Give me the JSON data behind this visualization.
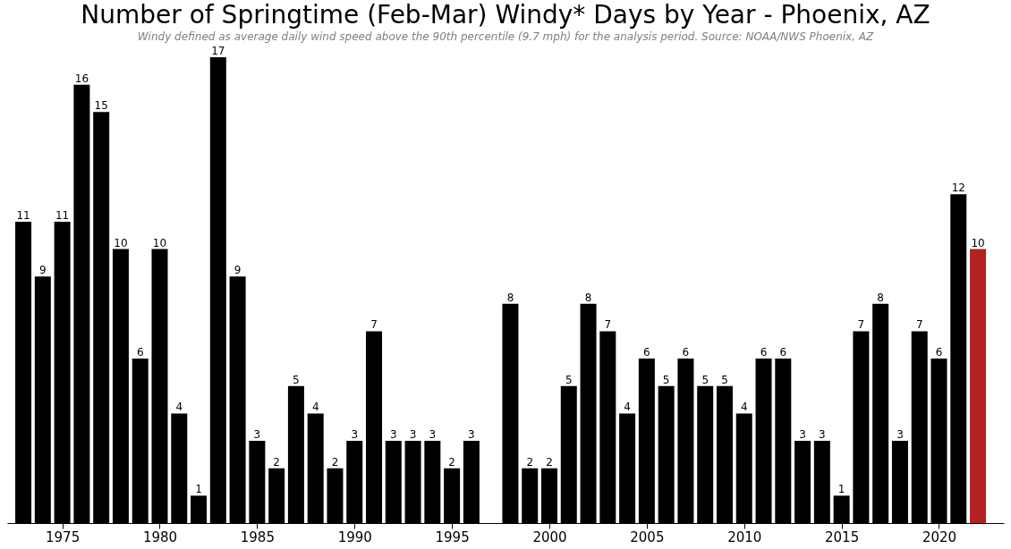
{
  "chart_data": {
    "type": "bar",
    "title": "Number of Springtime (Feb-Mar) Windy* Days by Year - Phoenix, AZ",
    "subtitle": "Windy defined as average daily wind speed above the 90th percentile (9.7 mph) for the analysis period. Source: NOAA/NWS Phoenix, AZ",
    "x": [
      1973,
      1974,
      1975,
      1976,
      1977,
      1978,
      1979,
      1980,
      1981,
      1982,
      1983,
      1984,
      1985,
      1986,
      1987,
      1988,
      1989,
      1990,
      1991,
      1992,
      1993,
      1994,
      1995,
      1996,
      1997,
      1998,
      1999,
      2000,
      2001,
      2002,
      2003,
      2004,
      2005,
      2006,
      2007,
      2008,
      2009,
      2010,
      2011,
      2012,
      2013,
      2014,
      2015,
      2016,
      2017,
      2018,
      2019,
      2020,
      2021,
      2022
    ],
    "values": [
      11,
      9,
      11,
      16,
      15,
      10,
      6,
      10,
      4,
      1,
      17,
      9,
      3,
      2,
      5,
      4,
      2,
      3,
      7,
      3,
      3,
      3,
      2,
      3,
      null,
      8,
      2,
      2,
      5,
      8,
      7,
      4,
      6,
      5,
      6,
      5,
      5,
      4,
      6,
      6,
      3,
      3,
      1,
      7,
      8,
      3,
      7,
      6,
      12,
      10
    ],
    "colors": [
      "#000000",
      "#000000",
      "#000000",
      "#000000",
      "#000000",
      "#000000",
      "#000000",
      "#000000",
      "#000000",
      "#000000",
      "#000000",
      "#000000",
      "#000000",
      "#000000",
      "#000000",
      "#000000",
      "#000000",
      "#000000",
      "#000000",
      "#000000",
      "#000000",
      "#000000",
      "#000000",
      "#000000",
      "#000000",
      "#000000",
      "#000000",
      "#000000",
      "#000000",
      "#000000",
      "#000000",
      "#000000",
      "#000000",
      "#000000",
      "#000000",
      "#000000",
      "#000000",
      "#000000",
      "#000000",
      "#000000",
      "#000000",
      "#000000",
      "#000000",
      "#000000",
      "#000000",
      "#000000",
      "#000000",
      "#000000",
      "#000000",
      "#b22222"
    ],
    "xlim": [
      1972.4,
      2023.1
    ],
    "xticks": [
      1975,
      1980,
      1985,
      1990,
      1995,
      2000,
      2005,
      2010,
      2015,
      2020
    ],
    "data_labels": true,
    "tick_labels": "x",
    "grid": false
  }
}
